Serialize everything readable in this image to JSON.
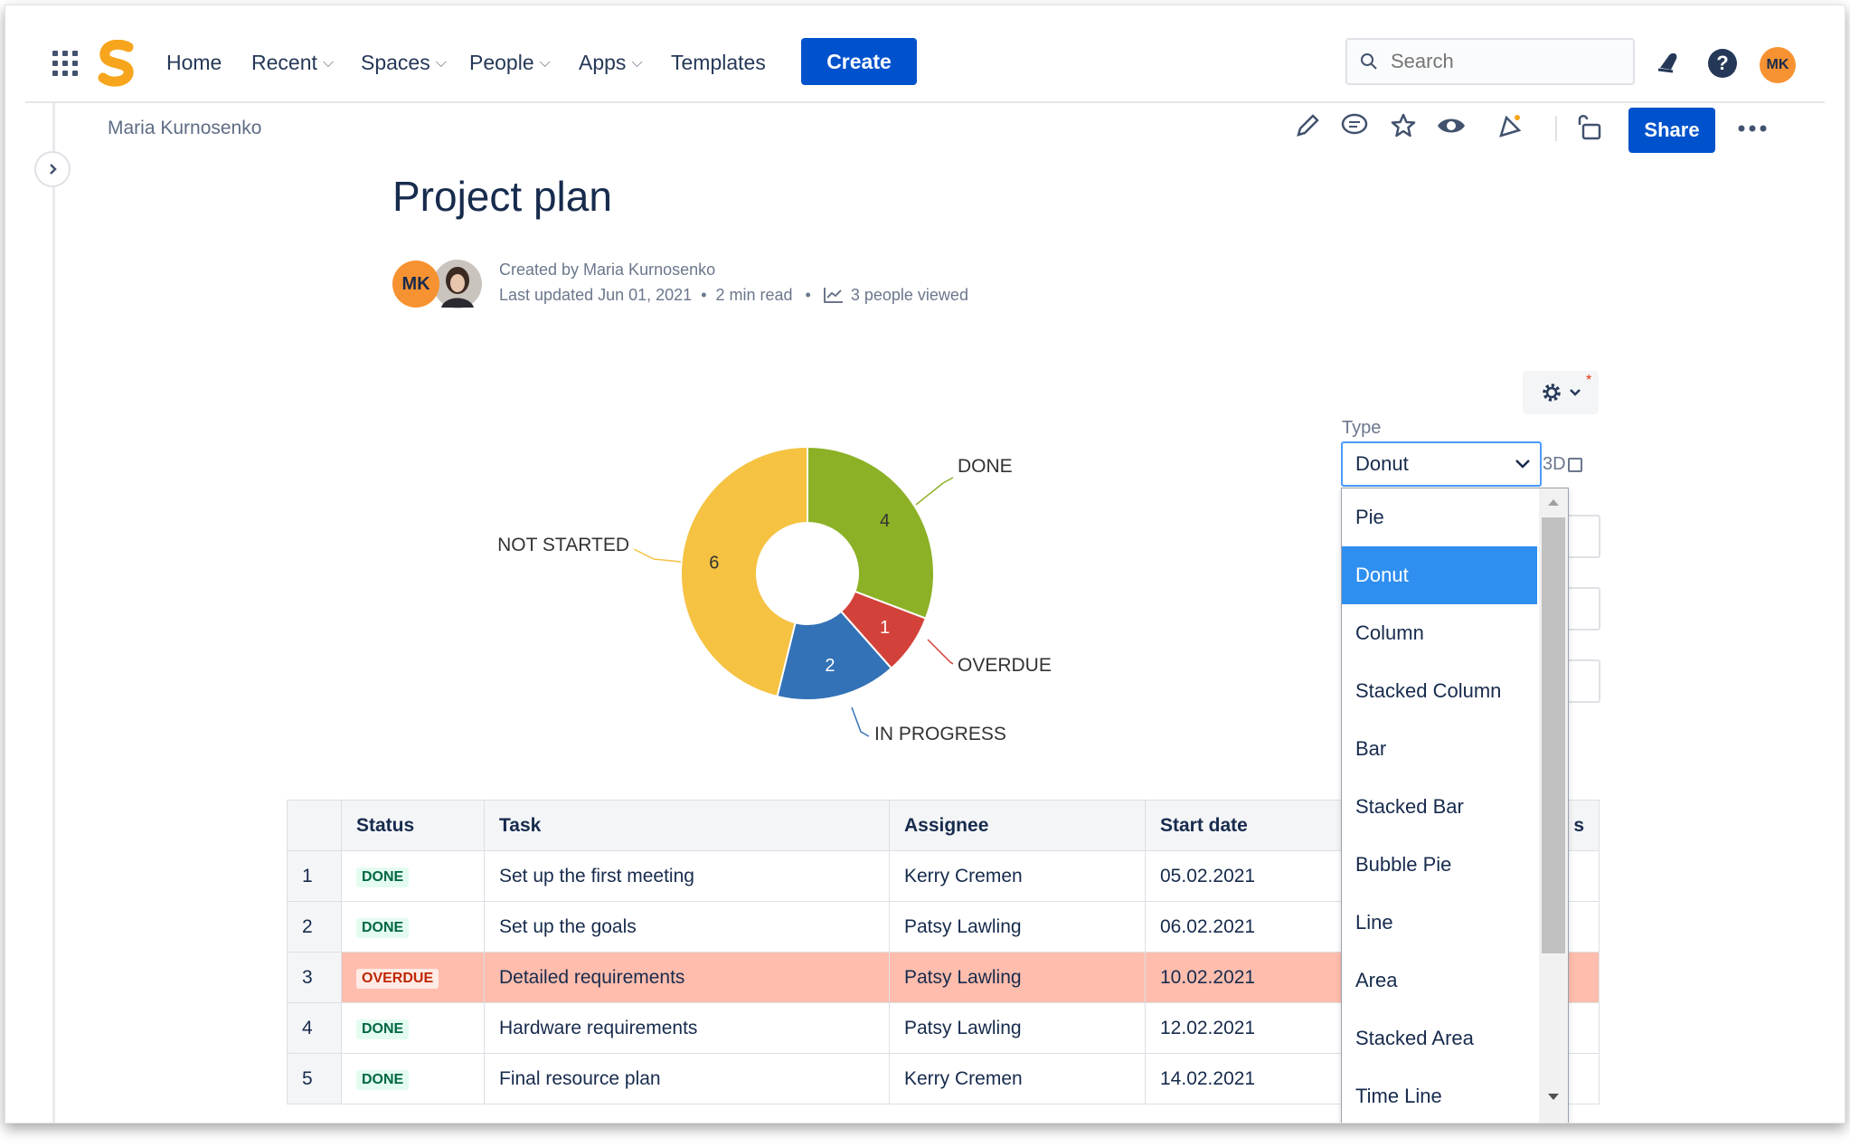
{
  "nav": {
    "home": "Home",
    "recent": "Recent",
    "spaces": "Spaces",
    "people": "People",
    "apps": "Apps",
    "templates": "Templates",
    "create": "Create",
    "search_placeholder": "Search",
    "user_initials": "MK"
  },
  "page": {
    "breadcrumb": "Maria Kurnosenko",
    "share": "Share",
    "title": "Project plan",
    "created_by": "Created by Maria Kurnosenko",
    "last_updated": "Last updated Jun 01, 2021",
    "read_time": "2 min read",
    "viewed": "3 people viewed",
    "author_initials": "MK"
  },
  "chart_settings": {
    "type_label": "Type",
    "selected_type": "Donut",
    "three_d_label": "3D",
    "options": [
      "Pie",
      "Donut",
      "Column",
      "Stacked Column",
      "Bar",
      "Stacked Bar",
      "Bubble Pie",
      "Line",
      "Area",
      "Stacked Area",
      "Time Line"
    ]
  },
  "chart_data": {
    "type": "pie",
    "variant": "donut",
    "categories": [
      "DONE",
      "OVERDUE",
      "IN PROGRESS",
      "NOT STARTED"
    ],
    "values": [
      4,
      1,
      2,
      6
    ],
    "colors": [
      "#8cb126",
      "#d3423a",
      "#3372b6",
      "#f5c242"
    ]
  },
  "table": {
    "headers": [
      "Status",
      "Task",
      "Assignee",
      "Start date",
      "s"
    ],
    "rows": [
      {
        "num": "1",
        "status": "DONE",
        "task": "Set up the first meeting",
        "assignee": "Kerry Cremen",
        "start": "05.02.2021"
      },
      {
        "num": "2",
        "status": "DONE",
        "task": "Set up the goals",
        "assignee": "Patsy Lawling",
        "start": "06.02.2021"
      },
      {
        "num": "3",
        "status": "OVERDUE",
        "task": "Detailed requirements",
        "assignee": "Patsy Lawling",
        "start": "10.02.2021"
      },
      {
        "num": "4",
        "status": "DONE",
        "task": "Hardware requirements",
        "assignee": "Patsy Lawling",
        "start": "12.02.2021"
      },
      {
        "num": "5",
        "status": "DONE",
        "task": "Final resource plan",
        "assignee": "Kerry Cremen",
        "start": "14.02.2021"
      }
    ]
  },
  "colors": {
    "primary": "#0052cc",
    "selected_option": "#2e8ff0",
    "overdue_row": "#ffbdad"
  }
}
